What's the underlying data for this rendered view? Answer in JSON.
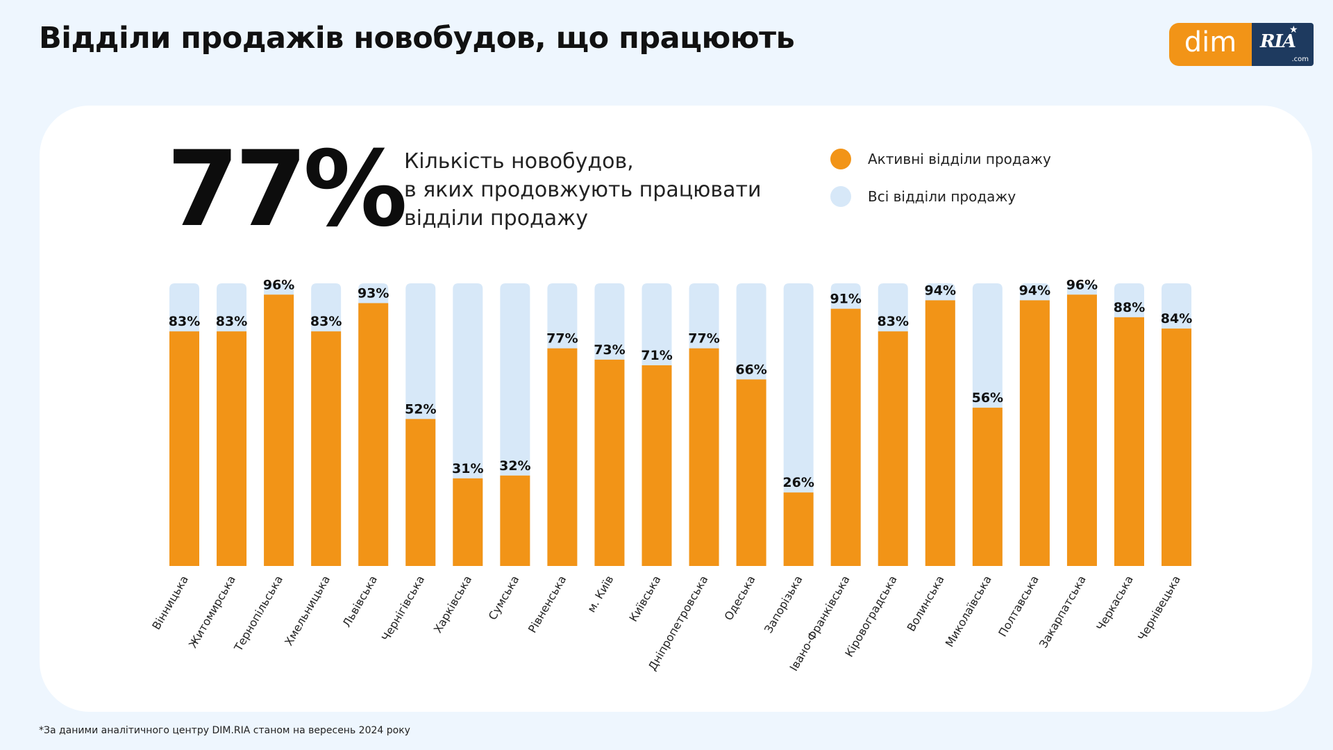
{
  "header": {
    "title": "Відділи продажів новобудов, що працюють"
  },
  "logo": {
    "dim": "dim",
    "ria": "RIA",
    "com": ".com"
  },
  "summary": {
    "value": "77%",
    "description": [
      "Кількість новобудов,",
      "в яких продовжують працювати",
      "відділи продажу"
    ]
  },
  "legend": [
    {
      "label": "Активні відділи продажу",
      "color": "#F29417"
    },
    {
      "label": "Всі відділи продажу",
      "color": "#D7E8F8"
    }
  ],
  "footnote": "*За даними аналітичного центру DIM.RIA станом на вересень 2024 року",
  "chart_data": {
    "type": "bar",
    "categories": [
      "Вінницька",
      "Житомирська",
      "Тернопільська",
      "Хмельницька",
      "Львівська",
      "Чернігівська",
      "Харківська",
      "Сумська",
      "Рівненська",
      "м. Київ",
      "Київська",
      "Дніпропетровська",
      "Одеська",
      "Запорізька",
      "Івано-Франківська",
      "Кіровоградська",
      "Волинська",
      "Миколаївська",
      "Полтавська",
      "Закарпатська",
      "Черкаська",
      "Чернівецька"
    ],
    "series": [
      {
        "name": "Активні відділи продажу",
        "values": [
          83,
          83,
          96,
          83,
          93,
          52,
          31,
          32,
          77,
          73,
          71,
          77,
          66,
          26,
          91,
          83,
          94,
          56,
          94,
          96,
          88,
          84
        ],
        "color": "#F29417"
      },
      {
        "name": "Всі відділи продажу",
        "values": [
          100,
          100,
          100,
          100,
          100,
          100,
          100,
          100,
          100,
          100,
          100,
          100,
          100,
          100,
          100,
          100,
          100,
          100,
          100,
          100,
          100,
          100
        ],
        "color": "#D7E8F8"
      }
    ],
    "value_labels": [
      "83%",
      "83%",
      "96%",
      "83%",
      "93%",
      "52%",
      "31%",
      "32%",
      "77%",
      "73%",
      "71%",
      "77%",
      "66%",
      "26%",
      "91%",
      "83%",
      "94%",
      "56%",
      "94%",
      "96%",
      "88%",
      "84%"
    ],
    "ylim": [
      0,
      100
    ],
    "unit": "%",
    "grid": false,
    "legend_position": "top-right"
  }
}
